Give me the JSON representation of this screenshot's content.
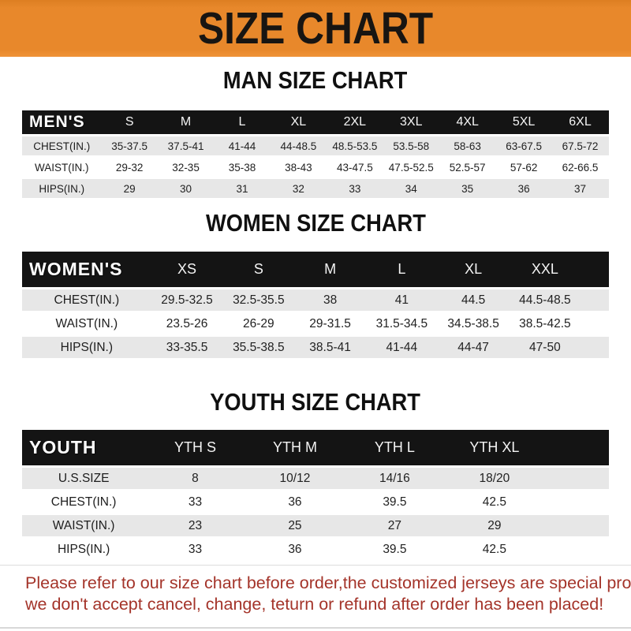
{
  "banner": {
    "title": "SIZE CHART"
  },
  "sections": [
    {
      "heading": "MAN SIZE CHART",
      "table": {
        "label": "MEN'S",
        "columns": [
          "S",
          "M",
          "L",
          "XL",
          "2XL",
          "3XL",
          "4XL",
          "5XL",
          "6XL"
        ],
        "rows": [
          {
            "label": "CHEST(IN.)",
            "values": [
              "35-37.5",
              "37.5-41",
              "41-44",
              "44-48.5",
              "48.5-53.5",
              "53.5-58",
              "58-63",
              "63-67.5",
              "67.5-72"
            ]
          },
          {
            "label": "WAIST(IN.)",
            "values": [
              "29-32",
              "32-35",
              "35-38",
              "38-43",
              "43-47.5",
              "47.5-52.5",
              "52.5-57",
              "57-62",
              "62-66.5"
            ]
          },
          {
            "label": "HIPS(IN.)",
            "values": [
              "29",
              "30",
              "31",
              "32",
              "33",
              "34",
              "35",
              "36",
              "37"
            ]
          }
        ]
      }
    },
    {
      "heading": "WOMEN SIZE CHART",
      "table": {
        "label": "WOMEN'S",
        "columns": [
          "XS",
          "S",
          "M",
          "L",
          "XL",
          "XXL"
        ],
        "rows": [
          {
            "label": "CHEST(IN.)",
            "values": [
              "29.5-32.5",
              "32.5-35.5",
              "38",
              "41",
              "44.5",
              "44.5-48.5"
            ]
          },
          {
            "label": "WAIST(IN.)",
            "values": [
              "23.5-26",
              "26-29",
              "29-31.5",
              "31.5-34.5",
              "34.5-38.5",
              "38.5-42.5"
            ]
          },
          {
            "label": "HIPS(IN.)",
            "values": [
              "33-35.5",
              "35.5-38.5",
              "38.5-41",
              "41-44",
              "44-47",
              "47-50"
            ]
          }
        ]
      }
    },
    {
      "heading": "YOUTH SIZE CHART",
      "table": {
        "label": "YOUTH",
        "columns": [
          "YTH S",
          "YTH M",
          "YTH L",
          "YTH XL"
        ],
        "rows": [
          {
            "label": "U.S.SIZE",
            "values": [
              "8",
              "10/12",
              "14/16",
              "18/20"
            ]
          },
          {
            "label": "CHEST(IN.)",
            "values": [
              "33",
              "36",
              "39.5",
              "42.5"
            ]
          },
          {
            "label": "WAIST(IN.)",
            "values": [
              "23",
              "25",
              "27",
              "29"
            ]
          },
          {
            "label": "HIPS(IN.)",
            "values": [
              "33",
              "36",
              "39.5",
              "42.5"
            ]
          }
        ]
      }
    }
  ],
  "footer": {
    "line1": "Please refer to our size chart before order,the customized jerseys are special products,",
    "line2": "we don't accept cancel, change, teturn or refund after order has been placed!"
  },
  "colors": {
    "banner-orange": "#E8882B",
    "banner-dark": "#DD7E21",
    "banner-light": "#EF9338",
    "header-black": "#141414",
    "row-gray": "#E7E7E7",
    "notice-red": "#A4342A"
  }
}
